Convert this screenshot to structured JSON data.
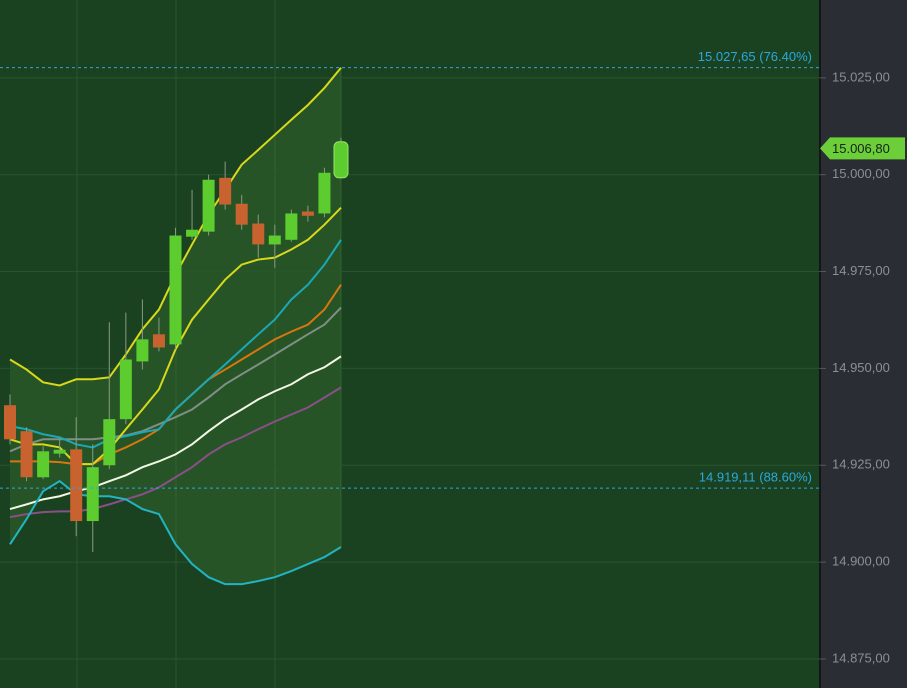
{
  "chart_data": {
    "type": "candlestick",
    "categories": [
      null,
      null,
      null,
      null,
      null,
      null,
      null,
      null,
      null,
      null,
      null,
      null,
      null,
      null,
      null,
      null,
      null,
      null,
      null,
      null,
      null
    ],
    "open": [
      14940.5,
      14933.8,
      14921.9,
      14928.0,
      14929.1,
      14910.6,
      14925.0,
      14936.9,
      14951.8,
      14958.8,
      14956.2,
      14984.0,
      14985.3,
      14999.2,
      14992.5,
      14987.4,
      14982.0,
      14983.2,
      14990.5,
      14990.0,
      14999.2
    ],
    "high": [
      14943.3,
      14934.8,
      14929.9,
      14932.0,
      14937.4,
      14930.4,
      14961.9,
      14964.4,
      14967.8,
      14963.1,
      14986.3,
      14996.1,
      15000.0,
      15003.4,
      14994.8,
      14989.7,
      14987.1,
      14991.0,
      14992.0,
      15001.8,
      15009.5
    ],
    "low": [
      14930.4,
      14920.9,
      14921.4,
      14927.0,
      14906.7,
      14902.6,
      14924.0,
      14935.6,
      14949.7,
      14954.4,
      14954.9,
      14983.2,
      14984.3,
      14991.0,
      14985.8,
      14978.6,
      14976.0,
      14982.7,
      14987.9,
      14989.0,
      14999.0
    ],
    "close": [
      14931.7,
      14921.9,
      14928.6,
      14929.0,
      14910.6,
      14924.5,
      14936.9,
      14952.3,
      14957.5,
      14955.4,
      14984.3,
      14985.8,
      14998.7,
      14992.3,
      14987.1,
      14982.0,
      14984.3,
      14990.0,
      14989.4,
      15000.5,
      15008.5
    ],
    "up_color": "#5ccc2e",
    "down_color": "#c8622e",
    "series": [
      {
        "color": "#8a4f8a",
        "values": [
          14911.6,
          14912.4,
          14912.9,
          14913.1,
          14913.1,
          14913.7,
          14914.9,
          14916.2,
          14917.5,
          14919.3,
          14921.9,
          14924.5,
          14927.8,
          14930.4,
          14932.2,
          14934.3,
          14936.3,
          14938.1,
          14939.9,
          14942.5,
          14945.1
        ]
      },
      {
        "color": "#f2f7e6",
        "values": [
          14913.7,
          14914.9,
          14916.2,
          14917.0,
          14918.3,
          14919.3,
          14920.9,
          14922.4,
          14924.5,
          14926.0,
          14927.8,
          14930.4,
          14933.8,
          14936.9,
          14939.4,
          14942.0,
          14944.1,
          14945.9,
          14948.5,
          14950.3,
          14953.1
        ]
      },
      {
        "color": "#7f8f85",
        "values": [
          14928.6,
          14930.4,
          14931.7,
          14931.7,
          14931.7,
          14931.7,
          14932.2,
          14932.7,
          14933.8,
          14935.6,
          14937.4,
          14939.4,
          14942.5,
          14945.9,
          14948.5,
          14951.0,
          14953.6,
          14956.2,
          14958.8,
          14961.3,
          14965.7
        ]
      },
      {
        "color": "#d9760f",
        "values": [
          14926.0,
          14926.0,
          14926.0,
          14925.8,
          14925.3,
          14925.3,
          14927.8,
          14929.6,
          14931.7,
          14934.3,
          14939.4,
          14943.3,
          14947.2,
          14949.7,
          14952.3,
          14954.9,
          14957.5,
          14959.5,
          14961.3,
          14965.2,
          14971.6
        ]
      },
      {
        "color": "#1aa8b8",
        "values": [
          14935.1,
          14934.3,
          14933.0,
          14932.2,
          14930.4,
          14929.6,
          14931.7,
          14932.5,
          14933.5,
          14934.3,
          14939.4,
          14943.3,
          14947.2,
          14951.0,
          14954.9,
          14958.8,
          14962.6,
          14967.8,
          14971.6,
          14976.8,
          14983.2
        ]
      },
      {
        "color": "#22b4c4",
        "values": [
          14904.6,
          14911.1,
          14918.3,
          14920.9,
          14917.5,
          14917.0,
          14917.0,
          14916.2,
          14913.7,
          14912.4,
          14904.6,
          14899.5,
          14896.1,
          14894.3,
          14894.3,
          14895.1,
          14896.1,
          14897.7,
          14899.5,
          14901.3,
          14903.9
        ]
      },
      {
        "color": "#d8d81c",
        "values": [
          14931.7,
          14930.4,
          14930.4,
          14929.6,
          14925.3,
          14925.3,
          14929.1,
          14934.3,
          14939.4,
          14944.6,
          14954.9,
          14962.6,
          14967.8,
          14972.9,
          14976.8,
          14978.1,
          14978.6,
          14980.7,
          14983.2,
          14987.1,
          14991.5
        ]
      },
      {
        "color": "#d8d81c",
        "values": [
          14952.3,
          14949.7,
          14946.4,
          14945.6,
          14947.2,
          14947.2,
          14947.7,
          14953.6,
          14960.1,
          14965.2,
          14974.2,
          14982.0,
          14989.7,
          14996.1,
          15002.6,
          15006.4,
          15010.3,
          15014.2,
          15018.0,
          15022.4,
          15027.6
        ]
      }
    ],
    "ylim": [
      14867.5,
      15045.1
    ],
    "yticks": [
      {
        "value": 14875,
        "label": "14.875,00"
      },
      {
        "value": 14900,
        "label": "14.900,00"
      },
      {
        "value": 14925,
        "label": "14.925,00"
      },
      {
        "value": 14950,
        "label": "14.950,00"
      },
      {
        "value": 14975,
        "label": "14.975,00"
      },
      {
        "value": 15000,
        "label": "15.000,00"
      },
      {
        "value": 15025,
        "label": "15.025,00"
      }
    ],
    "grid": true,
    "annotations": [
      {
        "value": 15027.65,
        "label": "15.027,65 (76.40%)"
      },
      {
        "value": 14919.11,
        "label": "14.919,11 (88.60%)"
      }
    ],
    "last_price": {
      "value": 15006.8,
      "label": "15.006,80"
    }
  }
}
